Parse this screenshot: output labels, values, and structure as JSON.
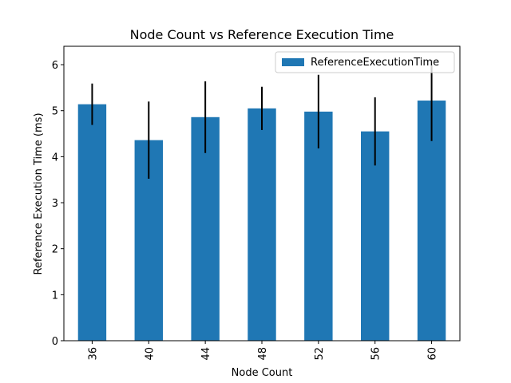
{
  "chart_data": {
    "type": "bar",
    "title": "Node Count vs Reference Execution Time",
    "xlabel": "Node Count",
    "ylabel": "Reference Execution Time (ms)",
    "categories": [
      "36",
      "40",
      "44",
      "48",
      "52",
      "56",
      "60"
    ],
    "series": [
      {
        "name": "ReferenceExecutionTime",
        "color": "#1f77b4",
        "values": [
          5.14,
          4.36,
          4.86,
          5.05,
          4.98,
          4.55,
          5.22
        ],
        "error": [
          0.45,
          0.84,
          0.78,
          0.47,
          0.8,
          0.74,
          0.88
        ]
      }
    ],
    "ylim": [
      0,
      6.4
    ],
    "yticks": [
      0,
      1,
      2,
      3,
      4,
      5,
      6
    ],
    "grid": false,
    "legend_position": "top-right",
    "error_bar_color": "#000000"
  }
}
